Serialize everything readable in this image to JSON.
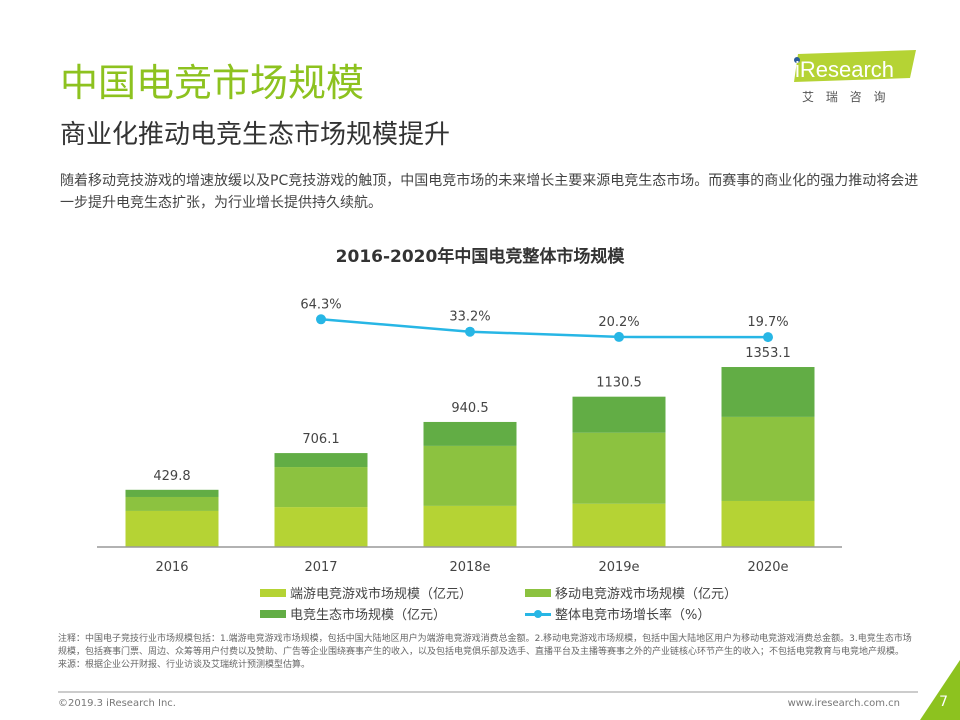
{
  "header": {
    "title": "中国电竞市场规模",
    "subtitle": "商业化推动电竞生态市场规模提升",
    "logo_text": "iResearch",
    "logo_cn": "艾 瑞 咨 询"
  },
  "description": "随着移动竞技游戏的增速放缓以及PC竞技游戏的触顶，中国电竞市场的未来增长主要来源电竞生态市场。而赛事的商业化的强力推动将会进一步提升电竞生态扩张，为行业增长提供持久续航。",
  "chart_data": {
    "type": "bar",
    "stacked": true,
    "title": "2016-2020年中国电竞整体市场规模",
    "categories": [
      "2016",
      "2017",
      "2018e",
      "2019e",
      "2020e"
    ],
    "series": [
      {
        "name": "端游电竞游戏市场规模（亿元）",
        "color": "#b5d334",
        "values": [
          271,
          300,
          309,
          325,
          346
        ]
      },
      {
        "name": "移动电竞游戏市场规模（亿元）",
        "color": "#8cc240",
        "values": [
          105,
          301,
          451,
          534,
          632
        ]
      },
      {
        "name": "电竞生态市场规模（亿元）",
        "color": "#62ad45",
        "values": [
          54,
          105,
          180,
          271,
          375
        ]
      }
    ],
    "totals": [
      "429.8",
      "706.1",
      "940.5",
      "1130.5",
      "1353.1"
    ],
    "line": {
      "name": "整体电竞市场增长率（%）",
      "color": "#27b6e5",
      "x": [
        "2017",
        "2018e",
        "2019e",
        "2020e"
      ],
      "values": [
        64.3,
        33.2,
        20.2,
        19.7
      ],
      "labels": [
        "64.3%",
        "33.2%",
        "20.2%",
        "19.7%"
      ]
    },
    "legend": "bottom",
    "grid": false
  },
  "notes": [
    "注释：中国电子竞技行业市场规模包括：1.端游电竞游戏市场规模，包括中国大陆地区用户为端游电竞游戏消费总金额。2.移动电竞游戏市场规模，包括中国大陆地区用户为移动电竞游戏消费总金额。3.电竞生态市场规模，包括赛事门票、周边、众筹等用户付费以及赞助、广告等企业围绕赛事产生的收入，以及包括电竞俱乐部及选手、直播平台及主播等赛事之外的产业链核心环节产生的收入；不包括电竞教育与电竞地产规模。",
    "来源：根据企业公开财报、行业访谈及艾瑞统计预测模型估算。"
  ],
  "footer": {
    "copyright": "©2019.3 iResearch Inc.",
    "url": "www.iresearch.com.cn",
    "page": "7"
  }
}
